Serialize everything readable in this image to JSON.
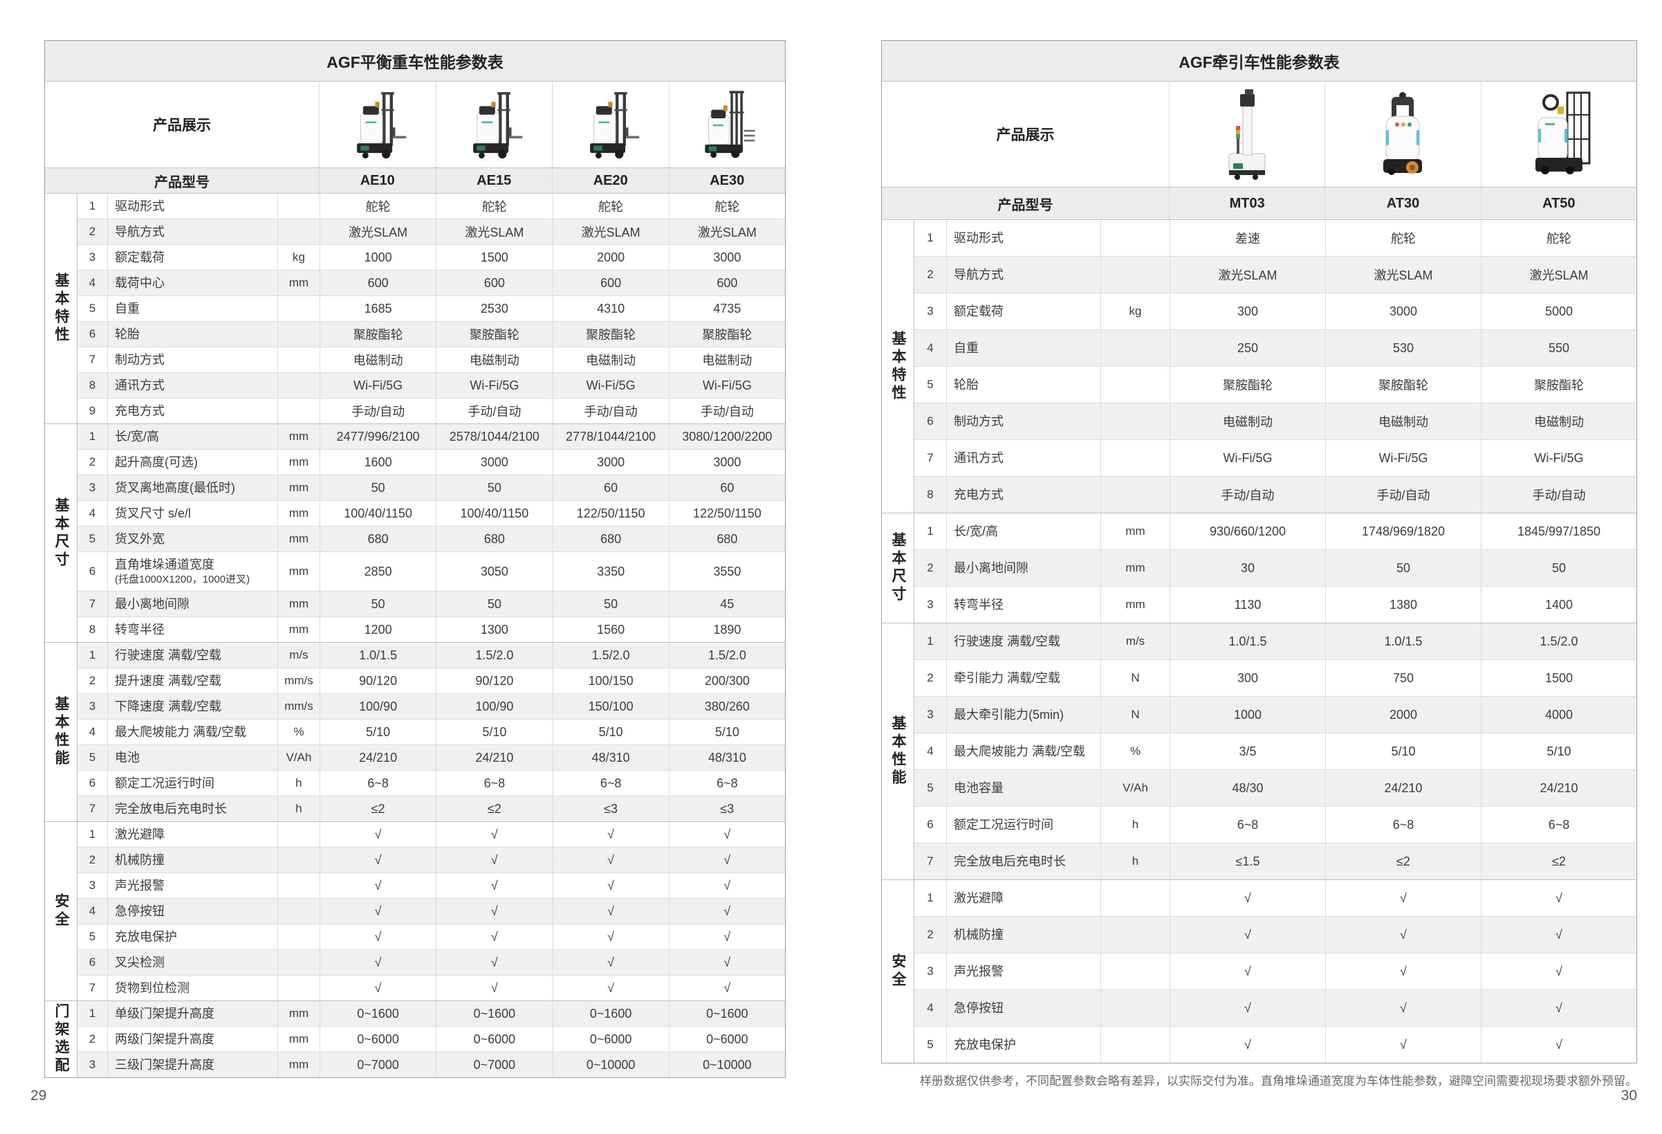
{
  "page": {
    "footnote": "样册数据仅供参考，不同配置参数会略有差异，以实际交付为准。直角堆垛通道宽度为车体性能参数，避障空间需要视现场要求额外预留。",
    "left_number": "29",
    "right_number": "30"
  },
  "left_table": {
    "title": "AGF平衡重车性能参数表",
    "product_display_label": "产品展示",
    "model_label": "产品型号",
    "models": [
      "AE10",
      "AE15",
      "AE20",
      "AE30"
    ],
    "product_images": [
      "forklift",
      "forklift",
      "forklift",
      "forklift-tall"
    ],
    "sections": [
      {
        "name": "基本特性",
        "key": "basic-features",
        "rows": [
          {
            "no": "1",
            "label": "驱动形式",
            "unit": "",
            "values": [
              "舵轮",
              "舵轮",
              "舵轮",
              "舵轮"
            ]
          },
          {
            "no": "2",
            "label": "导航方式",
            "unit": "",
            "values": [
              "激光SLAM",
              "激光SLAM",
              "激光SLAM",
              "激光SLAM"
            ]
          },
          {
            "no": "3",
            "label": "额定载荷",
            "unit": "kg",
            "values": [
              "1000",
              "1500",
              "2000",
              "3000"
            ]
          },
          {
            "no": "4",
            "label": "载荷中心",
            "unit": "mm",
            "values": [
              "600",
              "600",
              "600",
              "600"
            ]
          },
          {
            "no": "5",
            "label": "自重",
            "unit": "",
            "values": [
              "1685",
              "2530",
              "4310",
              "4735"
            ]
          },
          {
            "no": "6",
            "label": "轮胎",
            "unit": "",
            "values": [
              "聚胺酯轮",
              "聚胺酯轮",
              "聚胺酯轮",
              "聚胺酯轮"
            ]
          },
          {
            "no": "7",
            "label": "制动方式",
            "unit": "",
            "values": [
              "电磁制动",
              "电磁制动",
              "电磁制动",
              "电磁制动"
            ]
          },
          {
            "no": "8",
            "label": "通讯方式",
            "unit": "",
            "values": [
              "Wi-Fi/5G",
              "Wi-Fi/5G",
              "Wi-Fi/5G",
              "Wi-Fi/5G"
            ]
          },
          {
            "no": "9",
            "label": "充电方式",
            "unit": "",
            "values": [
              "手动/自动",
              "手动/自动",
              "手动/自动",
              "手动/自动"
            ]
          }
        ]
      },
      {
        "name": "基本尺寸",
        "key": "basic-dimensions",
        "rows": [
          {
            "no": "1",
            "label": "长/宽/高",
            "unit": "mm",
            "values": [
              "2477/996/2100",
              "2578/1044/2100",
              "2778/1044/2100",
              "3080/1200/2200"
            ]
          },
          {
            "no": "2",
            "label": "起升高度(可选)",
            "unit": "mm",
            "values": [
              "1600",
              "3000",
              "3000",
              "3000"
            ]
          },
          {
            "no": "3",
            "label": "货叉离地高度(最低时)",
            "unit": "mm",
            "values": [
              "50",
              "50",
              "60",
              "60"
            ]
          },
          {
            "no": "4",
            "label": "货叉尺寸 s/e/l",
            "unit": "mm",
            "values": [
              "100/40/1150",
              "100/40/1150",
              "122/50/1150",
              "122/50/1150"
            ]
          },
          {
            "no": "5",
            "label": "货叉外宽",
            "unit": "mm",
            "values": [
              "680",
              "680",
              "680",
              "680"
            ]
          },
          {
            "no": "6",
            "label": "直角堆垛通道宽度",
            "sublabel": "(托盘1000X1200，1000进叉)",
            "unit": "mm",
            "values": [
              "2850",
              "3050",
              "3350",
              "3550"
            ]
          },
          {
            "no": "7",
            "label": "最小离地间隙",
            "unit": "mm",
            "values": [
              "50",
              "50",
              "50",
              "45"
            ]
          },
          {
            "no": "8",
            "label": "转弯半径",
            "unit": "mm",
            "values": [
              "1200",
              "1300",
              "1560",
              "1890"
            ]
          }
        ]
      },
      {
        "name": "基本性能",
        "key": "basic-performance",
        "rows": [
          {
            "no": "1",
            "label": "行驶速度 满载/空载",
            "unit": "m/s",
            "values": [
              "1.0/1.5",
              "1.5/2.0",
              "1.5/2.0",
              "1.5/2.0"
            ]
          },
          {
            "no": "2",
            "label": "提升速度 满载/空载",
            "unit": "mm/s",
            "values": [
              "90/120",
              "90/120",
              "100/150",
              "200/300"
            ]
          },
          {
            "no": "3",
            "label": "下降速度 满载/空载",
            "unit": "mm/s",
            "values": [
              "100/90",
              "100/90",
              "150/100",
              "380/260"
            ]
          },
          {
            "no": "4",
            "label": "最大爬坡能力 满载/空载",
            "unit": "%",
            "values": [
              "5/10",
              "5/10",
              "5/10",
              "5/10"
            ]
          },
          {
            "no": "5",
            "label": "电池",
            "unit": "V/Ah",
            "values": [
              "24/210",
              "24/210",
              "48/310",
              "48/310"
            ]
          },
          {
            "no": "6",
            "label": "额定工况运行时间",
            "unit": "h",
            "values": [
              "6~8",
              "6~8",
              "6~8",
              "6~8"
            ]
          },
          {
            "no": "7",
            "label": "完全放电后充电时长",
            "unit": "h",
            "values": [
              "≤2",
              "≤2",
              "≤3",
              "≤3"
            ]
          }
        ]
      },
      {
        "name": "安全",
        "key": "safety",
        "rows": [
          {
            "no": "1",
            "label": "激光避障",
            "unit": "",
            "values": [
              "√",
              "√",
              "√",
              "√"
            ]
          },
          {
            "no": "2",
            "label": "机械防撞",
            "unit": "",
            "values": [
              "√",
              "√",
              "√",
              "√"
            ]
          },
          {
            "no": "3",
            "label": "声光报警",
            "unit": "",
            "values": [
              "√",
              "√",
              "√",
              "√"
            ]
          },
          {
            "no": "4",
            "label": "急停按钮",
            "unit": "",
            "values": [
              "√",
              "√",
              "√",
              "√"
            ]
          },
          {
            "no": "5",
            "label": "充放电保护",
            "unit": "",
            "values": [
              "√",
              "√",
              "√",
              "√"
            ]
          },
          {
            "no": "6",
            "label": "叉尖检测",
            "unit": "",
            "values": [
              "√",
              "√",
              "√",
              "√"
            ]
          },
          {
            "no": "7",
            "label": "货物到位检测",
            "unit": "",
            "values": [
              "√",
              "√",
              "√",
              "√"
            ]
          }
        ]
      },
      {
        "name": "门架选配",
        "key": "mast-options",
        "rows": [
          {
            "no": "1",
            "label": "单级门架提升高度",
            "unit": "mm",
            "values": [
              "0~1600",
              "0~1600",
              "0~1600",
              "0~1600"
            ]
          },
          {
            "no": "2",
            "label": "两级门架提升高度",
            "unit": "mm",
            "values": [
              "0~6000",
              "0~6000",
              "0~6000",
              "0~6000"
            ]
          },
          {
            "no": "3",
            "label": "三级门架提升高度",
            "unit": "mm",
            "values": [
              "0~7000",
              "0~7000",
              "0~10000",
              "0~10000"
            ]
          }
        ]
      }
    ]
  },
  "right_table": {
    "title": "AGF牵引车性能参数表",
    "product_display_label": "产品展示",
    "model_label": "产品型号",
    "models": [
      "MT03",
      "AT30",
      "AT50"
    ],
    "product_images": [
      "tower",
      "tug",
      "tug-cage"
    ],
    "sections": [
      {
        "name": "基本特性",
        "key": "basic-features",
        "rows": [
          {
            "no": "1",
            "label": "驱动形式",
            "unit": "",
            "values": [
              "差速",
              "舵轮",
              "舵轮"
            ]
          },
          {
            "no": "2",
            "label": "导航方式",
            "unit": "",
            "values": [
              "激光SLAM",
              "激光SLAM",
              "激光SLAM"
            ]
          },
          {
            "no": "3",
            "label": "额定载荷",
            "unit": "kg",
            "values": [
              "300",
              "3000",
              "5000"
            ]
          },
          {
            "no": "4",
            "label": "自重",
            "unit": "",
            "values": [
              "250",
              "530",
              "550"
            ]
          },
          {
            "no": "5",
            "label": "轮胎",
            "unit": "",
            "values": [
              "聚胺酯轮",
              "聚胺酯轮",
              "聚胺酯轮"
            ]
          },
          {
            "no": "6",
            "label": "制动方式",
            "unit": "",
            "values": [
              "电磁制动",
              "电磁制动",
              "电磁制动"
            ]
          },
          {
            "no": "7",
            "label": "通讯方式",
            "unit": "",
            "values": [
              "Wi-Fi/5G",
              "Wi-Fi/5G",
              "Wi-Fi/5G"
            ]
          },
          {
            "no": "8",
            "label": "充电方式",
            "unit": "",
            "values": [
              "手动/自动",
              "手动/自动",
              "手动/自动"
            ]
          }
        ]
      },
      {
        "name": "基本尺寸",
        "key": "basic-dimensions",
        "rows": [
          {
            "no": "1",
            "label": "长/宽/高",
            "unit": "mm",
            "values": [
              "930/660/1200",
              "1748/969/1820",
              "1845/997/1850"
            ]
          },
          {
            "no": "2",
            "label": "最小离地间隙",
            "unit": "mm",
            "values": [
              "30",
              "50",
              "50"
            ]
          },
          {
            "no": "3",
            "label": "转弯半径",
            "unit": "mm",
            "values": [
              "1130",
              "1380",
              "1400"
            ]
          }
        ]
      },
      {
        "name": "基本性能",
        "key": "basic-performance",
        "rows": [
          {
            "no": "1",
            "label": "行驶速度 满载/空载",
            "unit": "m/s",
            "values": [
              "1.0/1.5",
              "1.0/1.5",
              "1.5/2.0"
            ]
          },
          {
            "no": "2",
            "label": "牵引能力 满载/空载",
            "unit": "N",
            "values": [
              "300",
              "750",
              "1500"
            ]
          },
          {
            "no": "3",
            "label": "最大牵引能力(5min)",
            "unit": "N",
            "values": [
              "1000",
              "2000",
              "4000"
            ]
          },
          {
            "no": "4",
            "label": "最大爬坡能力 满载/空载",
            "unit": "%",
            "values": [
              "3/5",
              "5/10",
              "5/10"
            ]
          },
          {
            "no": "5",
            "label": "电池容量",
            "unit": "V/Ah",
            "values": [
              "48/30",
              "24/210",
              "24/210"
            ]
          },
          {
            "no": "6",
            "label": "额定工况运行时间",
            "unit": "h",
            "values": [
              "6~8",
              "6~8",
              "6~8"
            ]
          },
          {
            "no": "7",
            "label": "完全放电后充电时长",
            "unit": "h",
            "values": [
              "≤1.5",
              "≤2",
              "≤2"
            ]
          }
        ]
      },
      {
        "name": "安全",
        "key": "safety",
        "rows": [
          {
            "no": "1",
            "label": "激光避障",
            "unit": "",
            "values": [
              "√",
              "√",
              "√"
            ]
          },
          {
            "no": "2",
            "label": "机械防撞",
            "unit": "",
            "values": [
              "√",
              "√",
              "√"
            ]
          },
          {
            "no": "3",
            "label": "声光报警",
            "unit": "",
            "values": [
              "√",
              "√",
              "√"
            ]
          },
          {
            "no": "4",
            "label": "急停按钮",
            "unit": "",
            "values": [
              "√",
              "√",
              "√"
            ]
          },
          {
            "no": "5",
            "label": "充放电保护",
            "unit": "",
            "values": [
              "√",
              "√",
              "√"
            ]
          }
        ]
      }
    ]
  }
}
